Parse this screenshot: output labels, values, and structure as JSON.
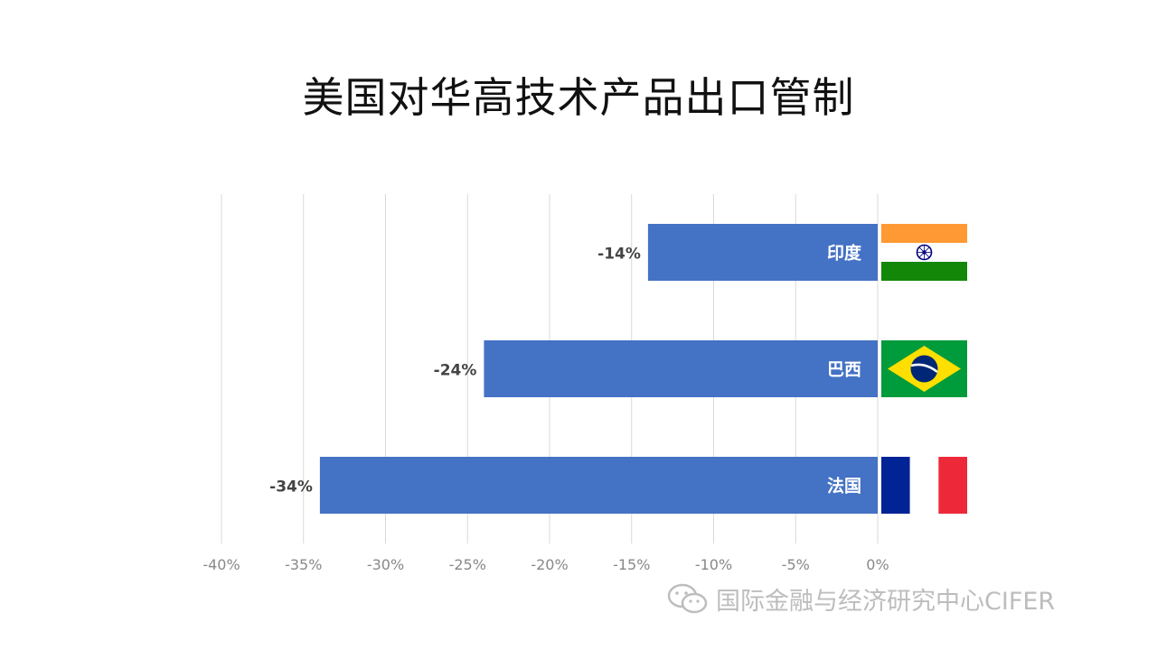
{
  "title": "美国对华高技术产品出口管制",
  "watermark": {
    "text": "国际金融与经济研究中心CIFER",
    "icon": "wechat-icon"
  },
  "chart_data": {
    "type": "bar",
    "orientation": "horizontal",
    "title": "美国对华高技术产品出口管制",
    "categories": [
      "印度",
      "巴西",
      "法国"
    ],
    "values": [
      -14,
      -24,
      -34
    ],
    "value_labels": [
      "-14%",
      "-24%",
      "-34%"
    ],
    "xlim": [
      -40,
      0
    ],
    "xticks": [
      -40,
      -35,
      -30,
      -25,
      -20,
      -15,
      -10,
      -5,
      0
    ],
    "xtick_labels": [
      "-40%",
      "-35%",
      "-30%",
      "-25%",
      "-20%",
      "-15%",
      "-10%",
      "-5%",
      "0%"
    ],
    "grid": true,
    "bar_color": "#4472c4",
    "flags": [
      "india-flag",
      "brazil-flag",
      "france-flag"
    ]
  }
}
